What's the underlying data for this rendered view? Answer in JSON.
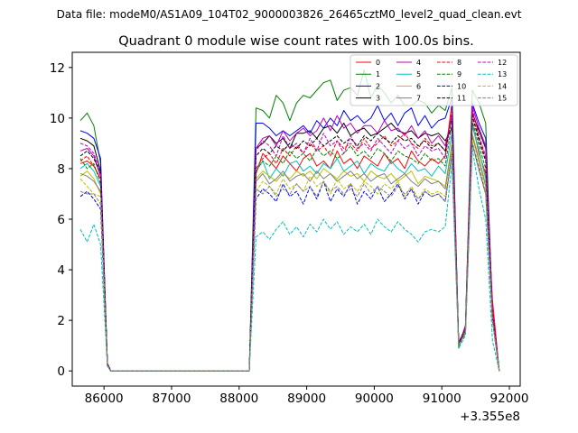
{
  "chart_data": {
    "type": "line",
    "suptitle": "Data file: modeM0/AS1A09_104T02_9000003826_26465cztM0_level2_quad_clean.evt",
    "title": "Quadrant 0 module wise count rates with 100.0s bins.",
    "xlabel": "",
    "ylabel": "",
    "x_offset_label": "+3.355e8",
    "xlim": [
      85530,
      92160
    ],
    "ylim": [
      -0.6,
      12.6
    ],
    "xticks": [
      86000,
      87000,
      88000,
      89000,
      90000,
      91000,
      92000
    ],
    "xtick_labels": [
      "86000",
      "87000",
      "88000",
      "89000",
      "90000",
      "91000",
      "92000"
    ],
    "yticks": [
      0,
      2,
      4,
      6,
      8,
      10,
      12
    ],
    "ytick_labels": [
      "0",
      "2",
      "4",
      "6",
      "8",
      "10",
      "12"
    ],
    "legend": {
      "location": "top-right",
      "columns": 4
    },
    "gap": {
      "from": 86100,
      "to": 88150,
      "value": 0
    },
    "segments": [
      {
        "x": [
          85650,
          85750,
          85850,
          85950,
          86050,
          86100
        ],
        "series_values": {
          "0": [
            8.2,
            8.3,
            8.1,
            7.6,
            0.3,
            0.0
          ],
          "1": [
            9.9,
            10.2,
            9.7,
            8.2,
            0.3,
            0.0
          ],
          "2": [
            9.5,
            9.4,
            9.2,
            8.4,
            0.3,
            0.0
          ],
          "3": [
            9.2,
            9.1,
            8.9,
            7.9,
            0.3,
            0.0
          ],
          "4": [
            8.7,
            8.8,
            8.5,
            7.7,
            0.3,
            0.0
          ],
          "5": [
            8.0,
            8.2,
            7.9,
            7.3,
            0.2,
            0.0
          ],
          "6": [
            7.7,
            7.9,
            7.6,
            7.0,
            0.2,
            0.0
          ],
          "7": [
            7.8,
            7.7,
            7.5,
            7.1,
            0.2,
            0.0
          ],
          "8": [
            8.3,
            8.5,
            8.1,
            7.6,
            0.3,
            0.0
          ],
          "9": [
            8.4,
            8.0,
            8.2,
            7.4,
            0.3,
            0.0
          ],
          "10": [
            6.9,
            7.1,
            6.8,
            6.4,
            0.2,
            0.0
          ],
          "11": [
            8.5,
            8.7,
            8.4,
            7.8,
            0.3,
            0.0
          ],
          "12": [
            9.0,
            8.9,
            8.6,
            7.8,
            0.3,
            0.0
          ],
          "13": [
            5.6,
            5.1,
            5.8,
            5.0,
            0.2,
            0.0
          ],
          "14": [
            7.6,
            7.3,
            7.0,
            6.9,
            0.2,
            0.0
          ],
          "15": [
            7.1,
            7.0,
            7.0,
            6.6,
            0.2,
            0.0
          ]
        }
      },
      {
        "x": [
          88150,
          88250,
          88350,
          88450,
          88550,
          88650,
          88750,
          88850,
          88950,
          89050,
          89150,
          89250,
          89350,
          89450,
          89550,
          89650,
          89750,
          89850,
          89950,
          90050,
          90150,
          90250,
          90350,
          90450,
          90550,
          90650,
          90750,
          90850,
          90950,
          91050,
          91150,
          91250,
          91350,
          91450,
          91550,
          91650,
          91750,
          91850
        ],
        "series_values": {
          "0": [
            0.0,
            7.8,
            8.6,
            8.3,
            8.0,
            8.5,
            8.2,
            7.9,
            8.4,
            8.6,
            8.1,
            8.3,
            8.0,
            8.7,
            8.2,
            8.4,
            8.0,
            8.5,
            8.3,
            8.1,
            8.6,
            8.2,
            8.4,
            8.0,
            8.7,
            8.3,
            8.1,
            8.4,
            8.2,
            8.5,
            10.6,
            1.0,
            1.6,
            9.8,
            8.6,
            7.8,
            2.8,
            0.0
          ],
          "1": [
            0.0,
            10.4,
            10.3,
            10.0,
            10.9,
            10.6,
            9.9,
            10.6,
            10.9,
            10.8,
            11.1,
            11.4,
            11.5,
            10.7,
            11.1,
            11.2,
            10.9,
            11.9,
            10.8,
            11.3,
            11.0,
            10.6,
            10.9,
            10.5,
            10.5,
            10.7,
            10.6,
            10.2,
            10.5,
            10.3,
            11.2,
            0.9,
            1.8,
            11.1,
            10.6,
            9.8,
            2.2,
            0.0
          ],
          "2": [
            0.0,
            9.8,
            9.8,
            9.6,
            9.3,
            9.5,
            9.3,
            9.5,
            9.7,
            9.4,
            9.9,
            9.6,
            10.0,
            9.7,
            10.3,
            9.9,
            10.1,
            9.8,
            10.0,
            10.5,
            9.9,
            10.2,
            9.7,
            10.2,
            10.4,
            9.7,
            10.1,
            9.6,
            9.9,
            10.0,
            10.8,
            1.1,
            1.7,
            10.6,
            9.8,
            9.2,
            2.4,
            0.0
          ],
          "3": [
            0.0,
            8.8,
            9.0,
            9.3,
            9.0,
            9.2,
            8.8,
            9.4,
            9.4,
            9.5,
            9.2,
            9.6,
            9.7,
            9.4,
            9.8,
            9.3,
            9.5,
            9.6,
            9.3,
            9.4,
            9.6,
            9.8,
            9.5,
            9.4,
            9.5,
            9.2,
            9.4,
            9.3,
            9.4,
            9.1,
            9.6,
            1.1,
            1.7,
            10.2,
            9.5,
            8.8,
            2.2,
            0.0
          ],
          "4": [
            0.0,
            8.8,
            9.2,
            9.3,
            8.9,
            9.5,
            9.1,
            9.4,
            9.6,
            9.3,
            9.5,
            10.0,
            9.5,
            10.1,
            9.6,
            9.8,
            9.4,
            9.7,
            9.7,
            9.4,
            9.9,
            9.5,
            9.6,
            9.3,
            9.7,
            9.2,
            9.5,
            9.0,
            9.3,
            8.9,
            10.1,
            1.0,
            1.8,
            10.5,
            9.6,
            8.9,
            2.3,
            0.0
          ],
          "5": [
            0.0,
            7.9,
            8.3,
            7.6,
            8.0,
            7.7,
            8.2,
            8.3,
            7.9,
            8.1,
            7.8,
            8.2,
            8.0,
            8.4,
            7.9,
            8.1,
            8.3,
            7.8,
            8.2,
            8.0,
            7.9,
            8.3,
            8.0,
            7.8,
            8.2,
            7.9,
            8.0,
            7.7,
            8.1,
            7.8,
            9.4,
            1.0,
            1.6,
            9.7,
            8.7,
            7.6,
            2.1,
            0.0
          ],
          "6": [
            0.0,
            7.6,
            7.9,
            7.7,
            7.5,
            7.8,
            7.6,
            7.9,
            7.7,
            7.9,
            7.6,
            8.0,
            7.8,
            7.6,
            7.9,
            7.7,
            7.8,
            7.5,
            7.9,
            7.7,
            7.6,
            7.8,
            7.5,
            7.7,
            7.9,
            7.4,
            7.7,
            7.6,
            7.5,
            7.3,
            9.0,
            1.0,
            1.5,
            9.4,
            8.4,
            7.4,
            2.0,
            0.0
          ],
          "7": [
            0.0,
            7.5,
            7.8,
            7.4,
            7.6,
            7.9,
            7.5,
            7.7,
            7.8,
            7.5,
            7.9,
            7.6,
            7.8,
            7.5,
            7.7,
            7.9,
            7.6,
            7.8,
            7.5,
            7.7,
            7.8,
            7.4,
            7.6,
            7.8,
            7.5,
            7.3,
            7.6,
            7.4,
            7.5,
            7.2,
            8.9,
            1.0,
            1.5,
            9.3,
            8.3,
            7.3,
            2.0,
            0.0
          ],
          "8": [
            0.0,
            8.0,
            8.4,
            8.6,
            8.2,
            8.8,
            8.5,
            8.9,
            8.6,
            9.0,
            8.7,
            8.9,
            8.5,
            9.1,
            8.8,
            9.0,
            8.7,
            9.2,
            8.8,
            9.0,
            9.3,
            8.9,
            9.1,
            9.4,
            9.0,
            8.8,
            9.2,
            8.9,
            9.0,
            8.7,
            10.3,
            1.1,
            1.7,
            10.3,
            9.2,
            8.4,
            2.4,
            0.0
          ],
          "9": [
            0.0,
            7.9,
            8.3,
            8.1,
            8.5,
            8.2,
            8.7,
            8.4,
            8.6,
            8.3,
            8.8,
            8.5,
            8.7,
            8.4,
            8.6,
            8.9,
            8.5,
            8.7,
            8.4,
            8.8,
            8.6,
            8.3,
            8.7,
            8.5,
            8.4,
            8.2,
            8.6,
            8.3,
            8.4,
            8.1,
            9.8,
            1.0,
            1.6,
            9.9,
            8.9,
            8.0,
            2.2,
            0.0
          ],
          "10": [
            0.0,
            6.8,
            7.2,
            7.0,
            6.7,
            7.4,
            6.9,
            7.1,
            6.6,
            7.3,
            6.8,
            7.5,
            6.7,
            7.2,
            6.9,
            7.4,
            6.6,
            7.1,
            6.8,
            7.3,
            6.7,
            7.0,
            7.4,
            6.8,
            7.2,
            6.6,
            7.1,
            6.9,
            7.0,
            6.7,
            8.6,
            1.0,
            1.5,
            9.0,
            8.0,
            7.0,
            2.0,
            0.0
          ],
          "11": [
            0.0,
            8.5,
            8.8,
            8.6,
            8.9,
            8.7,
            9.0,
            8.8,
            9.1,
            8.9,
            9.2,
            8.9,
            9.1,
            9.3,
            9.0,
            9.2,
            8.9,
            9.3,
            9.1,
            9.4,
            9.2,
            9.0,
            9.3,
            9.1,
            9.2,
            8.9,
            9.1,
            8.8,
            9.0,
            8.7,
            10.0,
            1.1,
            1.7,
            10.1,
            9.1,
            8.3,
            2.3,
            0.0
          ],
          "12": [
            0.0,
            8.7,
            9.1,
            8.9,
            8.5,
            9.3,
            8.8,
            9.0,
            8.6,
            9.2,
            8.7,
            9.4,
            8.9,
            9.1,
            8.6,
            9.3,
            8.8,
            9.0,
            8.7,
            9.2,
            8.9,
            8.6,
            9.1,
            8.8,
            9.0,
            8.5,
            8.9,
            8.7,
            8.8,
            8.4,
            10.2,
            1.0,
            1.7,
            10.4,
            9.3,
            8.5,
            2.4,
            0.0
          ],
          "13": [
            0.0,
            5.3,
            5.5,
            5.2,
            5.6,
            5.9,
            5.4,
            5.7,
            5.3,
            5.8,
            5.5,
            6.0,
            5.6,
            5.9,
            5.4,
            5.7,
            5.5,
            5.8,
            5.4,
            6.0,
            5.7,
            5.5,
            5.9,
            5.6,
            5.4,
            5.1,
            5.5,
            5.6,
            5.5,
            5.7,
            8.2,
            0.9,
            1.4,
            8.8,
            7.2,
            6.0,
            1.2,
            0.0
          ],
          "14": [
            0.0,
            7.1,
            7.5,
            7.3,
            7.0,
            7.6,
            7.2,
            7.4,
            7.1,
            7.7,
            7.3,
            7.5,
            7.0,
            7.6,
            7.2,
            7.4,
            7.1,
            7.5,
            7.3,
            7.0,
            7.4,
            7.2,
            7.5,
            6.9,
            7.3,
            6.8,
            7.2,
            7.0,
            7.1,
            6.9,
            8.7,
            1.0,
            1.5,
            9.1,
            8.1,
            7.1,
            2.0,
            0.0
          ],
          "15": [
            0.0,
            7.2,
            7.0,
            7.3,
            6.9,
            7.2,
            7.0,
            7.4,
            7.1,
            7.3,
            6.9,
            7.5,
            7.1,
            7.3,
            7.0,
            7.2,
            6.9,
            7.4,
            7.0,
            7.3,
            7.1,
            6.9,
            7.3,
            7.0,
            7.2,
            6.8,
            7.1,
            6.9,
            7.0,
            6.7,
            8.5,
            1.0,
            1.5,
            9.0,
            7.9,
            7.0,
            2.0,
            0.0
          ]
        }
      }
    ],
    "series": [
      {
        "name": "0",
        "color": "#ff0000",
        "dash": "solid"
      },
      {
        "name": "1",
        "color": "#008000",
        "dash": "solid"
      },
      {
        "name": "2",
        "color": "#0000ff",
        "dash": "solid"
      },
      {
        "name": "3",
        "color": "#000000",
        "dash": "solid"
      },
      {
        "name": "4",
        "color": "#bf00bf",
        "dash": "solid"
      },
      {
        "name": "5",
        "color": "#00bfbf",
        "dash": "solid"
      },
      {
        "name": "6",
        "color": "#bfbf00",
        "dash": "solid"
      },
      {
        "name": "7",
        "color": "#808080",
        "dash": "solid"
      },
      {
        "name": "8",
        "color": "#ff0000",
        "dash": "dashed"
      },
      {
        "name": "9",
        "color": "#008000",
        "dash": "dashed"
      },
      {
        "name": "10",
        "color": "#0000ff",
        "dash": "dashed"
      },
      {
        "name": "11",
        "color": "#000000",
        "dash": "dashed"
      },
      {
        "name": "12",
        "color": "#bf00bf",
        "dash": "dashed"
      },
      {
        "name": "13",
        "color": "#00bfbf",
        "dash": "dashed"
      },
      {
        "name": "14",
        "color": "#bfbf00",
        "dash": "dashed"
      },
      {
        "name": "15",
        "color": "#808080",
        "dash": "dashed"
      }
    ]
  }
}
